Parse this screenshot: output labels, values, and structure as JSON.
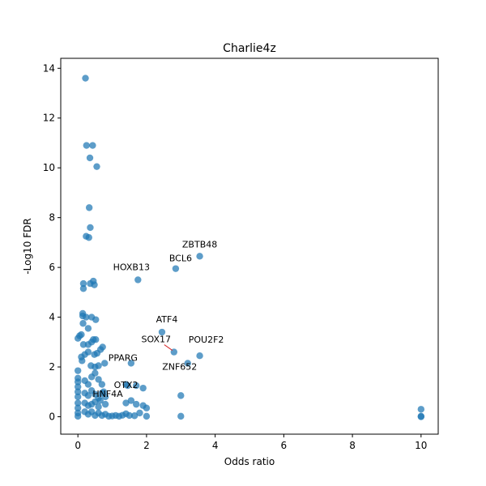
{
  "chart_data": {
    "type": "scatter",
    "title": "Charlie4z",
    "xlabel": "Odds ratio",
    "ylabel": "-Log10 FDR",
    "xlim": [
      -0.5,
      10.5
    ],
    "ylim": [
      -0.7,
      14.4
    ],
    "xticks": [
      0,
      2,
      4,
      6,
      8,
      10
    ],
    "yticks": [
      0,
      2,
      4,
      6,
      8,
      10,
      12,
      14
    ],
    "grid": false,
    "marker_color": "#1f77b4",
    "annotation_line_color": "#d62728",
    "points": [
      [
        0.22,
        13.6
      ],
      [
        0.25,
        10.9
      ],
      [
        0.43,
        10.9
      ],
      [
        0.35,
        10.4
      ],
      [
        0.55,
        10.05
      ],
      [
        0.33,
        8.4
      ],
      [
        0.36,
        7.6
      ],
      [
        0.24,
        7.25
      ],
      [
        0.32,
        7.2
      ],
      [
        0.16,
        5.35
      ],
      [
        0.16,
        5.15
      ],
      [
        0.36,
        5.35
      ],
      [
        0.45,
        5.45
      ],
      [
        0.48,
        5.3
      ],
      [
        0.14,
        4.05
      ],
      [
        0.14,
        4.15
      ],
      [
        0.24,
        4.0
      ],
      [
        0.4,
        4.0
      ],
      [
        0.52,
        3.9
      ],
      [
        0.15,
        3.75
      ],
      [
        0.3,
        3.55
      ],
      [
        0.0,
        3.15
      ],
      [
        0.05,
        3.25
      ],
      [
        0.1,
        3.3
      ],
      [
        0.4,
        3.0
      ],
      [
        0.45,
        3.1
      ],
      [
        0.52,
        3.1
      ],
      [
        0.16,
        2.9
      ],
      [
        0.3,
        2.9
      ],
      [
        0.2,
        2.5
      ],
      [
        0.3,
        2.6
      ],
      [
        0.48,
        2.5
      ],
      [
        0.56,
        2.55
      ],
      [
        0.66,
        2.7
      ],
      [
        0.72,
        2.8
      ],
      [
        0.1,
        2.4
      ],
      [
        0.12,
        2.25
      ],
      [
        0.78,
        2.15
      ],
      [
        0.38,
        2.05
      ],
      [
        0.5,
        2.0
      ],
      [
        0.6,
        2.05
      ],
      [
        0.0,
        1.85
      ],
      [
        0.0,
        1.55
      ],
      [
        0.0,
        1.4
      ],
      [
        0.0,
        1.2
      ],
      [
        0.0,
        1.0
      ],
      [
        0.0,
        0.8
      ],
      [
        0.0,
        0.55
      ],
      [
        0.0,
        0.35
      ],
      [
        0.0,
        0.15
      ],
      [
        0.0,
        0.02
      ],
      [
        0.2,
        1.45
      ],
      [
        0.3,
        1.3
      ],
      [
        0.4,
        1.6
      ],
      [
        0.5,
        1.75
      ],
      [
        0.6,
        1.5
      ],
      [
        0.7,
        1.3
      ],
      [
        0.2,
        0.95
      ],
      [
        0.3,
        0.85
      ],
      [
        0.4,
        1.05
      ],
      [
        0.5,
        0.9
      ],
      [
        0.6,
        0.75
      ],
      [
        0.7,
        0.95
      ],
      [
        0.2,
        0.55
      ],
      [
        0.3,
        0.45
      ],
      [
        0.4,
        0.5
      ],
      [
        0.5,
        0.6
      ],
      [
        0.6,
        0.4
      ],
      [
        0.8,
        0.5
      ],
      [
        0.2,
        0.2
      ],
      [
        0.3,
        0.1
      ],
      [
        0.4,
        0.2
      ],
      [
        0.5,
        0.05
      ],
      [
        0.6,
        0.15
      ],
      [
        0.7,
        0.05
      ],
      [
        0.8,
        0.1
      ],
      [
        0.9,
        0.02
      ],
      [
        1.0,
        0.03
      ],
      [
        1.1,
        0.05
      ],
      [
        1.2,
        0.02
      ],
      [
        1.3,
        0.06
      ],
      [
        1.4,
        0.12
      ],
      [
        1.5,
        0.05
      ],
      [
        1.65,
        0.04
      ],
      [
        1.8,
        0.15
      ],
      [
        1.9,
        0.45
      ],
      [
        2.0,
        0.02
      ],
      [
        2.0,
        0.35
      ],
      [
        1.7,
        0.5
      ],
      [
        1.55,
        0.65
      ],
      [
        1.4,
        0.55
      ],
      [
        0.75,
        1.0
      ],
      [
        0.8,
        0.8
      ],
      [
        0.65,
        0.65
      ],
      [
        1.55,
        2.15
      ],
      [
        1.4,
        1.3
      ],
      [
        1.45,
        1.25
      ],
      [
        1.7,
        1.25
      ],
      [
        1.9,
        1.15
      ],
      [
        1.75,
        5.5
      ],
      [
        2.85,
        5.95
      ],
      [
        3.55,
        6.45
      ],
      [
        2.45,
        3.4
      ],
      [
        2.8,
        2.6
      ],
      [
        3.2,
        2.15
      ],
      [
        3.55,
        2.45
      ],
      [
        3.0,
        0.85
      ],
      [
        3.0,
        0.02
      ],
      [
        10.0,
        0.3
      ],
      [
        10.0,
        0.02
      ],
      [
        10.0,
        0.0
      ]
    ],
    "annotations": [
      {
        "label": "ZBTB48",
        "x": 3.55,
        "y": 6.45
      },
      {
        "label": "BCL6",
        "x": 2.85,
        "y": 5.95
      },
      {
        "label": "HOXB13",
        "x": 1.75,
        "y": 5.5
      },
      {
        "label": "ATF4",
        "x": 2.45,
        "y": 3.4
      },
      {
        "label": "SOX17",
        "x": 2.8,
        "y": 2.6
      },
      {
        "label": "POU2F2",
        "x": 3.55,
        "y": 2.45
      },
      {
        "label": "PPARG",
        "x": 1.55,
        "y": 2.15
      },
      {
        "label": "ZNF652",
        "x": 3.2,
        "y": 2.15
      },
      {
        "label": "OTX2",
        "x": 1.45,
        "y": 1.25
      },
      {
        "label": "HNF4A",
        "x": 1.2,
        "y": 0.8
      }
    ]
  }
}
